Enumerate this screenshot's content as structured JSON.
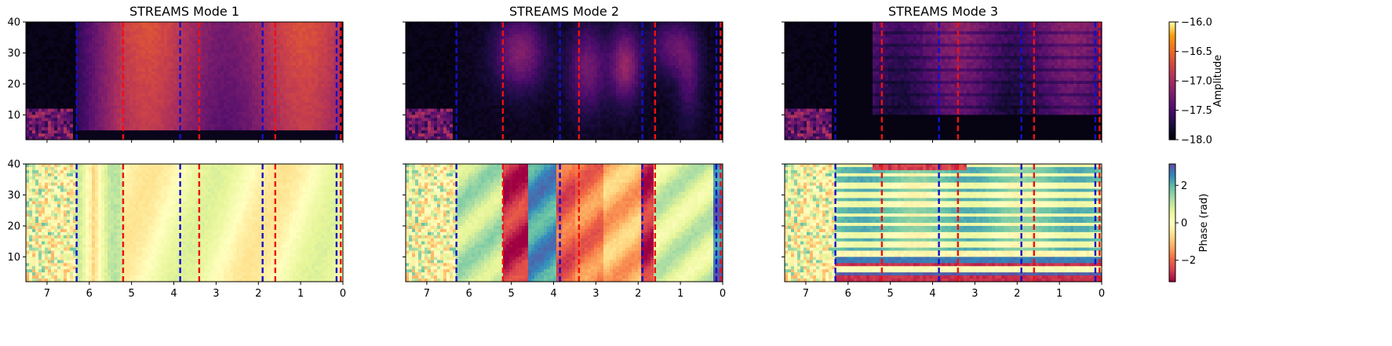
{
  "chart_data": {
    "type": "heatmap",
    "panels": [
      {
        "title": "STREAMS Mode 1",
        "row": "amplitude",
        "col": 0,
        "pattern": "amp1"
      },
      {
        "title": "STREAMS Mode 2",
        "row": "amplitude",
        "col": 1,
        "pattern": "amp2"
      },
      {
        "title": "STREAMS Mode 3",
        "row": "amplitude",
        "col": 2,
        "pattern": "amp3"
      },
      {
        "title": "",
        "row": "phase",
        "col": 0,
        "pattern": "ph1"
      },
      {
        "title": "",
        "row": "phase",
        "col": 1,
        "pattern": "ph2"
      },
      {
        "title": "",
        "row": "phase",
        "col": 2,
        "pattern": "ph3"
      }
    ],
    "xaxis": {
      "inverted": true,
      "xlim": [
        7.5,
        0
      ],
      "ticks": [
        7,
        6,
        5,
        4,
        3,
        2,
        1,
        0
      ],
      "tick_labels": [
        "7",
        "6",
        "5",
        "4",
        "3",
        "2",
        "1",
        "0"
      ]
    },
    "yaxis": {
      "ylim": [
        2,
        40
      ],
      "ticks": [
        10,
        20,
        30,
        40
      ],
      "tick_labels": [
        "10",
        "20",
        "30",
        "40"
      ]
    },
    "vlines": {
      "blue": {
        "color": "#1010cc",
        "style": "dashed",
        "x": [
          6.3,
          3.85,
          1.9,
          0.15
        ]
      },
      "red": {
        "color": "#ee1111",
        "style": "dashed",
        "x": [
          5.2,
          3.4,
          1.6,
          0.05
        ]
      }
    },
    "colorbars": [
      {
        "row": "amplitude",
        "label": "Amplitude",
        "colormap": "inferno",
        "range": [
          -18.0,
          -16.0
        ],
        "ticks": [
          -18.0,
          -17.5,
          -17.0,
          -16.5,
          -16.0
        ],
        "tick_labels": [
          "−18.0",
          "−17.5",
          "−17.0",
          "−16.5",
          "−16.0"
        ]
      },
      {
        "row": "phase",
        "label": "Phase (rad)",
        "colormap": "Spectral",
        "range": [
          -3.1416,
          3.1416
        ],
        "ticks": [
          -2,
          0,
          2
        ],
        "tick_labels": [
          "−2",
          "0",
          "2"
        ]
      }
    ]
  }
}
